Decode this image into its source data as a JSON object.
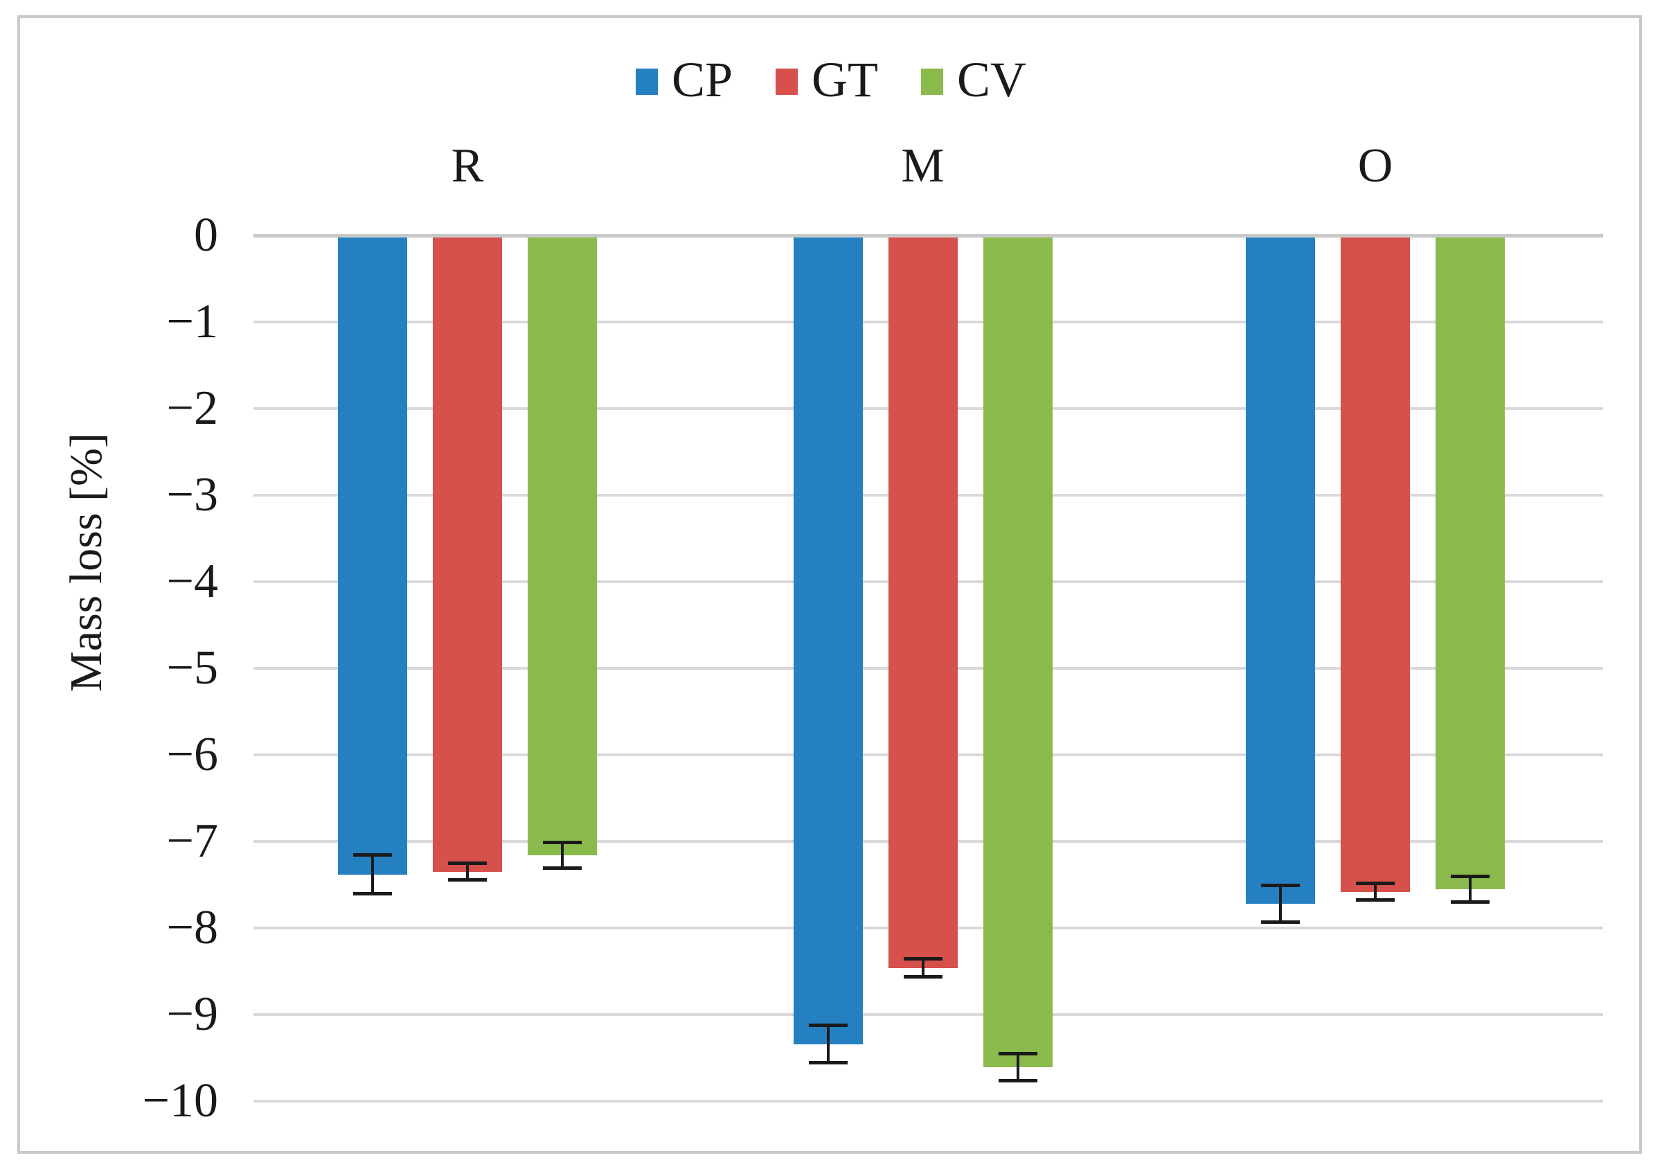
{
  "chart_data": {
    "type": "bar",
    "orientation": "vertical-negative",
    "title": "",
    "ylabel": "Mass loss [%]",
    "xlabel": "",
    "ylim": [
      -10,
      0
    ],
    "ytick_step": 1,
    "ytick_labels": [
      "0",
      "−1",
      "−2",
      "−3",
      "−4",
      "−5",
      "−6",
      "−7",
      "−8",
      "−9",
      "−10"
    ],
    "grid": true,
    "legend_position": "top",
    "categories": [
      "R",
      "M",
      "O"
    ],
    "series": [
      {
        "name": "CP",
        "color": "#2580C1",
        "values": [
          -7.38,
          -9.34,
          -7.72
        ],
        "errors": [
          0.23,
          0.22,
          0.22
        ]
      },
      {
        "name": "GT",
        "color": "#D6504C",
        "values": [
          -7.35,
          -8.46,
          -7.58
        ],
        "errors": [
          0.1,
          0.11,
          0.1
        ]
      },
      {
        "name": "CV",
        "color": "#8BBA4C",
        "values": [
          -7.16,
          -9.61,
          -7.55
        ],
        "errors": [
          0.15,
          0.16,
          0.15
        ]
      }
    ]
  }
}
